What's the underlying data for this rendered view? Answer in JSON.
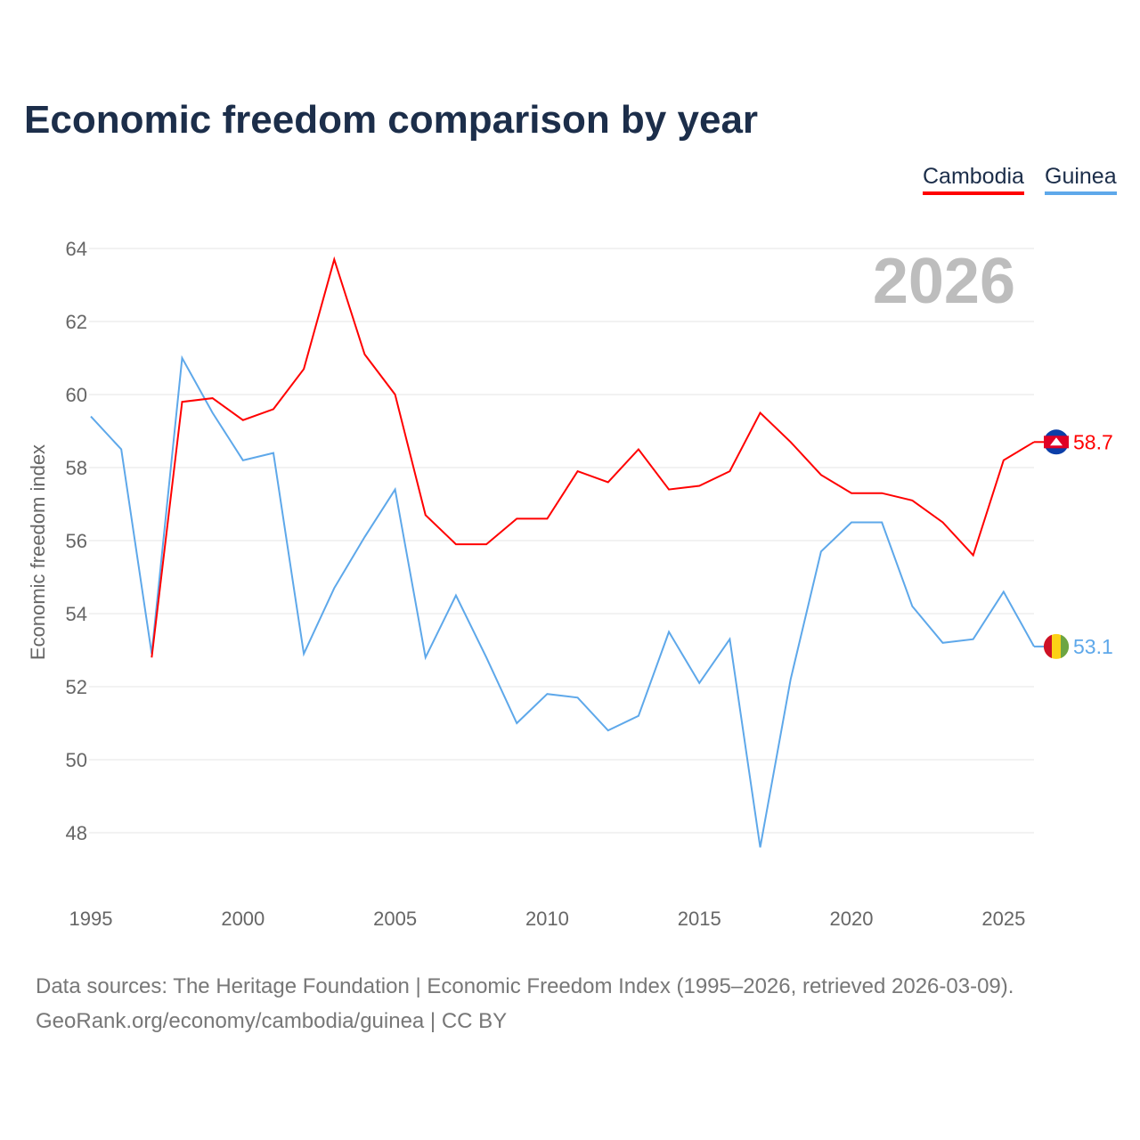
{
  "title": "Economic freedom comparison by year",
  "year_watermark": "2026",
  "footer": {
    "line1": "Data sources: The Heritage Foundation | Economic Freedom Index (1995–2026, retrieved 2026-03-09).",
    "line2": "GeoRank.org/economy/cambodia/guinea | CC BY"
  },
  "chart_data": {
    "type": "line",
    "title": "Economic freedom comparison by year",
    "xlabel": "",
    "ylabel": "Economic freedom index",
    "xlim": [
      1995,
      2026
    ],
    "ylim": [
      46.8,
      64.5
    ],
    "yticks": [
      48,
      50,
      52,
      54,
      56,
      58,
      60,
      62,
      64
    ],
    "xticks": [
      1995,
      2000,
      2005,
      2010,
      2015,
      2020,
      2025
    ],
    "grid": true,
    "legend": "top-right",
    "series": [
      {
        "name": "Cambodia",
        "color": "#ff0000",
        "end_label": "58.7",
        "x": [
          1997,
          1998,
          1999,
          2000,
          2001,
          2002,
          2003,
          2004,
          2005,
          2006,
          2007,
          2008,
          2009,
          2010,
          2011,
          2012,
          2013,
          2014,
          2015,
          2016,
          2017,
          2018,
          2019,
          2020,
          2021,
          2022,
          2023,
          2024,
          2025,
          2026
        ],
        "values": [
          52.8,
          59.8,
          59.9,
          59.3,
          59.6,
          60.7,
          63.7,
          61.1,
          60.0,
          56.7,
          55.9,
          55.9,
          56.6,
          56.6,
          57.9,
          57.6,
          58.5,
          57.4,
          57.5,
          57.9,
          59.5,
          58.7,
          57.8,
          57.3,
          57.3,
          57.1,
          56.5,
          55.6,
          58.2,
          58.7
        ]
      },
      {
        "name": "Guinea",
        "color": "#5ea8ea",
        "end_label": "53.1",
        "x": [
          1995,
          1996,
          1997,
          1998,
          1999,
          2000,
          2001,
          2002,
          2003,
          2004,
          2005,
          2006,
          2007,
          2008,
          2009,
          2010,
          2011,
          2012,
          2013,
          2014,
          2015,
          2016,
          2017,
          2018,
          2019,
          2020,
          2021,
          2022,
          2023,
          2024,
          2025,
          2026
        ],
        "values": [
          59.4,
          58.5,
          52.9,
          61.0,
          59.5,
          58.2,
          58.4,
          52.9,
          54.7,
          56.1,
          57.4,
          52.8,
          54.5,
          52.8,
          51.0,
          51.8,
          51.7,
          50.8,
          51.2,
          53.5,
          52.1,
          53.3,
          47.6,
          52.2,
          55.7,
          56.5,
          56.5,
          54.2,
          53.2,
          53.3,
          54.6,
          53.1
        ]
      }
    ]
  }
}
